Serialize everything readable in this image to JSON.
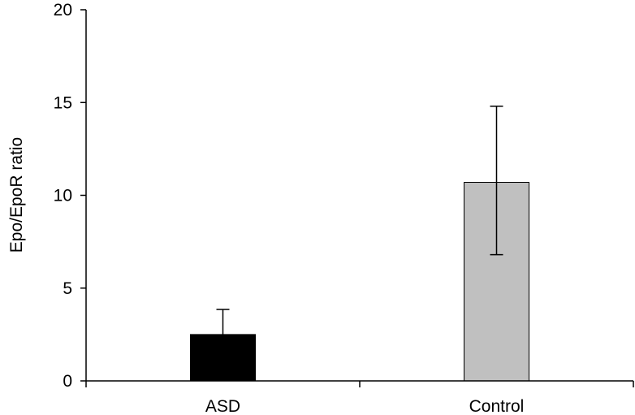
{
  "chart_data": {
    "type": "bar",
    "title": "",
    "xlabel": "",
    "ylabel": "Epo/EpoR ratio",
    "ylim": [
      0,
      20
    ],
    "yticks": [
      0,
      5,
      10,
      15,
      20
    ],
    "grid": false,
    "categories": [
      "ASD",
      "Control"
    ],
    "values": [
      2.5,
      10.7
    ],
    "error_upper": [
      3.85,
      14.8
    ],
    "error_lower": [
      2.5,
      6.8
    ],
    "bar_colors": [
      "#000000",
      "#c0c0c0"
    ]
  }
}
